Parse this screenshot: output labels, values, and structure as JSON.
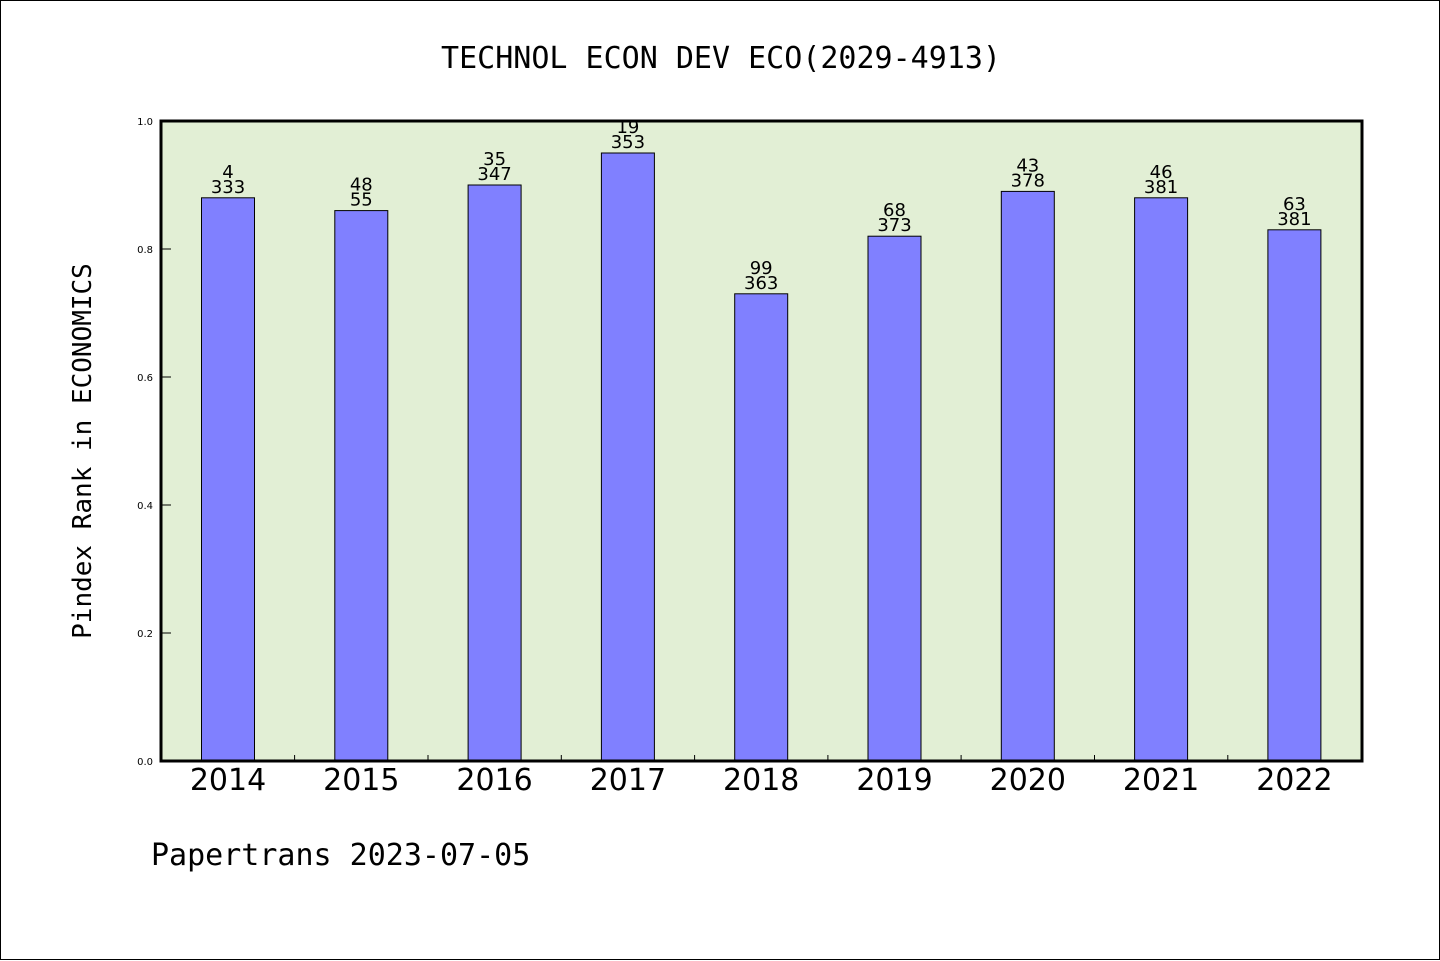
{
  "chart_data": {
    "type": "bar",
    "title": "TECHNOL ECON DEV ECO(2029-4913)",
    "ylabel": "Pindex Rank in ECONOMICS",
    "xlabel": "",
    "ylim": [
      0,
      1.0
    ],
    "yticks": [
      "0.0",
      "0.2",
      "0.4",
      "0.6",
      "0.8",
      "1.0"
    ],
    "categories": [
      "2014",
      "2015",
      "2016",
      "2017",
      "2018",
      "2019",
      "2020",
      "2021",
      "2022"
    ],
    "values": [
      0.88,
      0.86,
      0.9,
      0.95,
      0.73,
      0.82,
      0.89,
      0.88,
      0.83
    ],
    "labels_top": [
      "4",
      "48",
      "35",
      "19",
      "99",
      "68",
      "43",
      "46",
      "63"
    ],
    "labels_bottom": [
      "333",
      "55",
      "347",
      "353",
      "363",
      "373",
      "378",
      "381",
      "381"
    ],
    "grid": false,
    "legend": "none",
    "colors": {
      "bar": "#8080ff",
      "plot_bg": "#e2efd5",
      "bar_edge": "#000000"
    }
  },
  "footer": "Papertrans 2023-07-05"
}
